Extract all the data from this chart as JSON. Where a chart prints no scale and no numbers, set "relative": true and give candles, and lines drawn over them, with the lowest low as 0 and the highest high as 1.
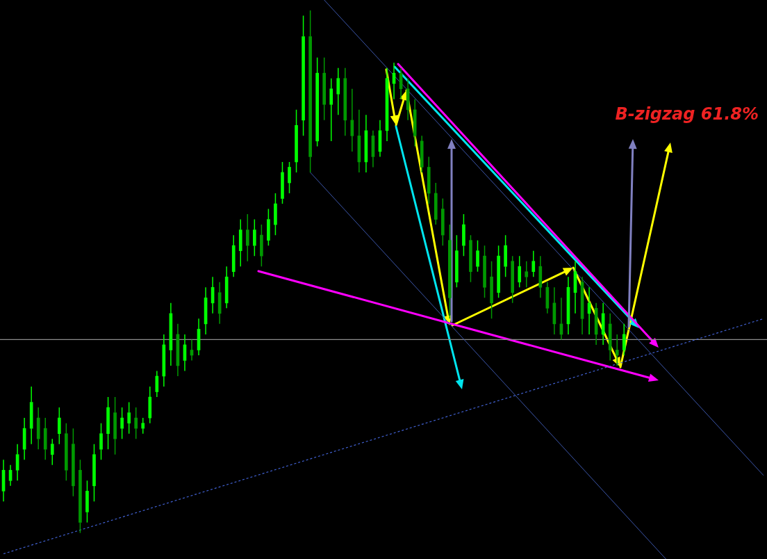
{
  "chart_data": {
    "type": "candlestick",
    "relative": true,
    "colors": [
      "#00ff00",
      "#00ff00",
      "#00ff00",
      "#00ff00",
      "#00ff00",
      "#009900",
      "#009900",
      "#00ff00",
      "#00ff00",
      "#009900",
      "#009900",
      "#009900",
      "#00ff00",
      "#00ff00",
      "#00ff00",
      "#00ff00",
      "#009900",
      "#00ff00",
      "#00ff00",
      "#009900",
      "#00ff00",
      "#00ff00",
      "#00ff00",
      "#00ff00",
      "#00ff00",
      "#009900",
      "#00ff00",
      "#009900",
      "#00ff00",
      "#00ff00",
      "#00ff00",
      "#009900",
      "#00ff00",
      "#00ff00",
      "#00ff00",
      "#009900",
      "#00ff00",
      "#009900",
      "#00ff00",
      "#00ff00",
      "#00ff00",
      "#00ff00",
      "#00ff00",
      "#00ff00",
      "#009900",
      "#00ff00",
      "#009900",
      "#00ff00",
      "#00ff00",
      "#009900",
      "#009900",
      "#009900",
      "#00ff00",
      "#009900",
      "#00ff00",
      "#00ff00",
      "#00ff00",
      "#009900",
      "#009900",
      "#009900",
      "#009900",
      "#009900",
      "#009900",
      "#009900",
      "#009900",
      "#00ff00",
      "#00ff00",
      "#009900",
      "#00ff00",
      "#009900",
      "#009900",
      "#00ff00",
      "#00ff00",
      "#009900",
      "#00ff00",
      "#009900",
      "#00ff00",
      "#009900",
      "#009900",
      "#009900",
      "#009900",
      "#00ff00",
      "#00ff00",
      "#009900",
      "#00ff00",
      "#009900",
      "#00ff00",
      "#009900",
      "#009900",
      "#00ff00",
      null,
      null,
      null,
      null,
      null,
      null,
      null,
      null,
      null,
      null,
      null,
      null,
      null,
      null,
      null,
      null,
      null,
      null,
      null,
      null
    ],
    "legend": false,
    "tick_labels": false,
    "annotations": [
      "B-zigzag 61.8%"
    ],
    "ref_lines": [
      {
        "axis": "y",
        "value": 0.37,
        "color": "#8c8c8c"
      }
    ],
    "categories": [
      null,
      null,
      null,
      null,
      null,
      null,
      null,
      null,
      null,
      null,
      null,
      null,
      null,
      null,
      null,
      null,
      null,
      null,
      null,
      null,
      null,
      null,
      null,
      null,
      null,
      null,
      null,
      null,
      null,
      null,
      null,
      null,
      null,
      null,
      null,
      null,
      null,
      null,
      null,
      null,
      null,
      null,
      null,
      null,
      null,
      null,
      null,
      null,
      null,
      null,
      null,
      null,
      null,
      null,
      null,
      null,
      null,
      null,
      null,
      null,
      null,
      null,
      null,
      null,
      null,
      null,
      null,
      null,
      null,
      null,
      null,
      null,
      null,
      null,
      null,
      null,
      null,
      null,
      null,
      null,
      null,
      null,
      null,
      null,
      null,
      null,
      null,
      null,
      null,
      null,
      null,
      null,
      null,
      null,
      null,
      null,
      null,
      null,
      null,
      null,
      null,
      null,
      null,
      null,
      null,
      null,
      null,
      null,
      null,
      null
    ],
    "ohlc": [
      [
        0.08,
        0.14,
        0.06,
        0.12
      ],
      [
        0.1,
        0.13,
        0.09,
        0.12
      ],
      [
        0.12,
        0.17,
        0.1,
        0.15
      ],
      [
        0.16,
        0.22,
        0.14,
        0.2
      ],
      [
        0.2,
        0.28,
        0.17,
        0.25
      ],
      [
        0.22,
        0.24,
        0.16,
        0.18
      ],
      [
        0.2,
        0.22,
        0.14,
        0.16
      ],
      [
        0.15,
        0.18,
        0.13,
        0.17
      ],
      [
        0.19,
        0.24,
        0.17,
        0.22
      ],
      [
        0.19,
        0.21,
        0.1,
        0.12
      ],
      [
        0.17,
        0.2,
        0.07,
        0.09
      ],
      [
        0.12,
        0.14,
        0.0,
        0.02
      ],
      [
        0.04,
        0.1,
        0.02,
        0.08
      ],
      [
        0.09,
        0.17,
        0.06,
        0.15
      ],
      [
        0.16,
        0.21,
        0.14,
        0.19
      ],
      [
        0.19,
        0.26,
        0.16,
        0.24
      ],
      [
        0.23,
        0.26,
        0.15,
        0.18
      ],
      [
        0.2,
        0.24,
        0.18,
        0.22
      ],
      [
        0.21,
        0.25,
        0.19,
        0.23
      ],
      [
        0.22,
        0.24,
        0.18,
        0.2
      ],
      [
        0.2,
        0.22,
        0.19,
        0.21
      ],
      [
        0.22,
        0.28,
        0.21,
        0.26
      ],
      [
        0.27,
        0.31,
        0.26,
        0.3
      ],
      [
        0.3,
        0.38,
        0.28,
        0.36
      ],
      [
        0.35,
        0.44,
        0.32,
        0.42
      ],
      [
        0.38,
        0.4,
        0.3,
        0.32
      ],
      [
        0.33,
        0.38,
        0.31,
        0.36
      ],
      [
        0.35,
        0.37,
        0.33,
        0.34
      ],
      [
        0.35,
        0.41,
        0.34,
        0.39
      ],
      [
        0.4,
        0.47,
        0.38,
        0.45
      ],
      [
        0.44,
        0.49,
        0.42,
        0.47
      ],
      [
        0.46,
        0.48,
        0.4,
        0.42
      ],
      [
        0.44,
        0.51,
        0.43,
        0.49
      ],
      [
        0.5,
        0.57,
        0.49,
        0.55
      ],
      [
        0.54,
        0.6,
        0.51,
        0.58
      ],
      [
        0.58,
        0.61,
        0.52,
        0.55
      ],
      [
        0.55,
        0.6,
        0.53,
        0.58
      ],
      [
        0.57,
        0.59,
        0.51,
        0.53
      ],
      [
        0.56,
        0.62,
        0.55,
        0.6
      ],
      [
        0.59,
        0.65,
        0.57,
        0.63
      ],
      [
        0.64,
        0.71,
        0.63,
        0.69
      ],
      [
        0.67,
        0.71,
        0.65,
        0.7
      ],
      [
        0.71,
        0.81,
        0.69,
        0.78
      ],
      [
        0.79,
        0.99,
        0.76,
        0.95
      ],
      [
        0.95,
        1.0,
        0.69,
        0.72
      ],
      [
        0.75,
        0.91,
        0.74,
        0.88
      ],
      [
        0.88,
        0.91,
        0.79,
        0.82
      ],
      [
        0.82,
        0.87,
        0.75,
        0.85
      ],
      [
        0.84,
        0.89,
        0.8,
        0.87
      ],
      [
        0.87,
        0.89,
        0.76,
        0.79
      ],
      [
        0.79,
        0.85,
        0.73,
        0.76
      ],
      [
        0.76,
        0.81,
        0.69,
        0.71
      ],
      [
        0.71,
        0.8,
        0.69,
        0.77
      ],
      [
        0.76,
        0.77,
        0.7,
        0.72
      ],
      [
        0.73,
        0.79,
        0.72,
        0.77
      ],
      [
        0.77,
        0.89,
        0.75,
        0.87
      ],
      [
        0.86,
        0.9,
        0.83,
        0.88
      ],
      [
        0.88,
        0.89,
        0.83,
        0.85
      ],
      [
        0.85,
        0.87,
        0.79,
        0.81
      ],
      [
        0.81,
        0.83,
        0.74,
        0.76
      ],
      [
        0.75,
        0.76,
        0.69,
        0.7
      ],
      [
        0.7,
        0.72,
        0.63,
        0.65
      ],
      [
        0.65,
        0.67,
        0.59,
        0.6
      ],
      [
        0.62,
        0.64,
        0.55,
        0.57
      ],
      [
        0.56,
        0.59,
        0.41,
        0.45
      ],
      [
        0.48,
        0.57,
        0.47,
        0.54
      ],
      [
        0.55,
        0.61,
        0.53,
        0.59
      ],
      [
        0.56,
        0.57,
        0.48,
        0.5
      ],
      [
        0.51,
        0.56,
        0.5,
        0.54
      ],
      [
        0.53,
        0.55,
        0.45,
        0.47
      ],
      [
        0.49,
        0.52,
        0.41,
        0.44
      ],
      [
        0.46,
        0.55,
        0.45,
        0.53
      ],
      [
        0.51,
        0.57,
        0.49,
        0.55
      ],
      [
        0.52,
        0.53,
        0.44,
        0.46
      ],
      [
        0.48,
        0.53,
        0.47,
        0.51
      ],
      [
        0.5,
        0.52,
        0.47,
        0.49
      ],
      [
        0.5,
        0.54,
        0.49,
        0.52
      ],
      [
        0.51,
        0.53,
        0.45,
        0.47
      ],
      [
        0.47,
        0.48,
        0.42,
        0.43
      ],
      [
        0.44,
        0.47,
        0.38,
        0.4
      ],
      [
        0.4,
        0.45,
        0.37,
        0.38
      ],
      [
        0.4,
        0.49,
        0.38,
        0.47
      ],
      [
        0.46,
        0.52,
        0.42,
        0.5
      ],
      [
        0.48,
        0.49,
        0.38,
        0.41
      ],
      [
        0.42,
        0.47,
        0.38,
        0.44
      ],
      [
        0.43,
        0.44,
        0.36,
        0.38
      ],
      [
        0.38,
        0.44,
        0.36,
        0.42
      ],
      [
        0.4,
        0.42,
        0.33,
        0.35
      ],
      [
        0.35,
        0.38,
        0.32,
        0.34
      ],
      [
        0.35,
        0.4,
        0.34,
        0.38
      ],
      null,
      null,
      null,
      null,
      null,
      null,
      null,
      null,
      null,
      null,
      null,
      null,
      null,
      null,
      null,
      null,
      null,
      null,
      null,
      null
    ],
    "series": [
      {
        "type": "line",
        "color": "#3b55a8",
        "line_style": "solid",
        "values": [
          null,
          null,
          null,
          null,
          null,
          null,
          null,
          null,
          null,
          null,
          null,
          null,
          null,
          null,
          null,
          null,
          null,
          null,
          null,
          null,
          null,
          null,
          null,
          null,
          null,
          null,
          null,
          null,
          null,
          null,
          null,
          null,
          null,
          null,
          null,
          null,
          null,
          null,
          null,
          null,
          null,
          null,
          null,
          null,
          null,
          null,
          1.02,
          null,
          null,
          null,
          null,
          null,
          null,
          null,
          null,
          null,
          null,
          null,
          null,
          null,
          null,
          null,
          null,
          null,
          null,
          null,
          null,
          null,
          null,
          null,
          null,
          null,
          null,
          null,
          null,
          null,
          null,
          null,
          null,
          null,
          null,
          null,
          null,
          null,
          null,
          null,
          null,
          null,
          null,
          null,
          null,
          null,
          null,
          null,
          null,
          null,
          null,
          null,
          null,
          null,
          null,
          null,
          null,
          null,
          null,
          null,
          null,
          null,
          null,
          0.11
        ]
      },
      {
        "type": "line",
        "color": "#3b55a8",
        "line_style": "solid",
        "values": [
          null,
          null,
          null,
          null,
          null,
          null,
          null,
          null,
          null,
          null,
          null,
          null,
          null,
          null,
          null,
          null,
          null,
          null,
          null,
          null,
          null,
          null,
          null,
          null,
          null,
          null,
          null,
          null,
          null,
          null,
          null,
          null,
          null,
          null,
          null,
          null,
          null,
          null,
          null,
          null,
          null,
          null,
          null,
          null,
          0.69,
          null,
          null,
          null,
          null,
          null,
          null,
          null,
          null,
          null,
          null,
          null,
          null,
          null,
          null,
          null,
          null,
          null,
          null,
          null,
          null,
          null,
          null,
          null,
          null,
          null,
          null,
          null,
          null,
          null,
          null,
          null,
          null,
          null,
          null,
          null,
          null,
          null,
          null,
          null,
          null,
          null,
          null,
          null,
          null,
          null,
          null,
          null,
          null,
          null,
          null,
          -0.05,
          null,
          null,
          null,
          null,
          null,
          null,
          null,
          null,
          null,
          null,
          null,
          null,
          null,
          null
        ]
      },
      {
        "type": "line",
        "color": "#4060d0",
        "line_style": "dotted",
        "values": [
          -0.04,
          null,
          null,
          null,
          null,
          null,
          null,
          null,
          null,
          null,
          null,
          null,
          null,
          null,
          null,
          null,
          null,
          null,
          null,
          null,
          null,
          null,
          null,
          null,
          null,
          null,
          null,
          null,
          null,
          null,
          null,
          null,
          null,
          null,
          null,
          null,
          null,
          null,
          null,
          null,
          null,
          null,
          null,
          null,
          null,
          null,
          null,
          null,
          null,
          null,
          null,
          null,
          null,
          null,
          null,
          null,
          null,
          null,
          null,
          null,
          null,
          null,
          null,
          null,
          null,
          null,
          null,
          null,
          null,
          null,
          null,
          null,
          null,
          null,
          null,
          null,
          null,
          null,
          null,
          null,
          null,
          null,
          null,
          null,
          null,
          null,
          null,
          null,
          null,
          null,
          null,
          null,
          null,
          null,
          null,
          null,
          null,
          null,
          null,
          null,
          null,
          null,
          null,
          null,
          null,
          null,
          null,
          null,
          null,
          0.41
        ]
      }
    ]
  }
}
